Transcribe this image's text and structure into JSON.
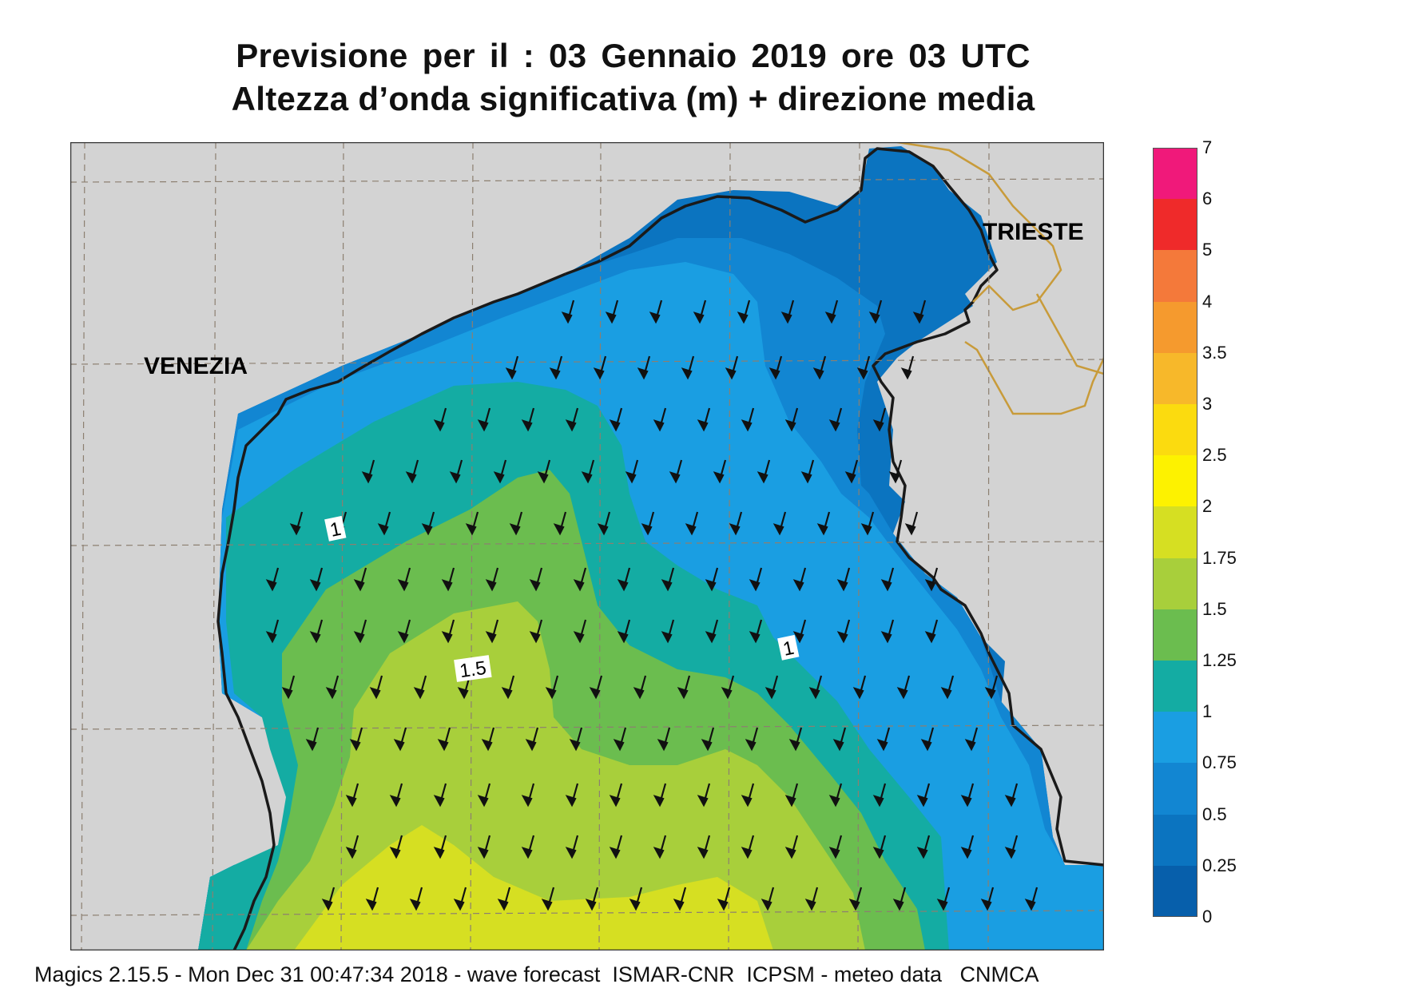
{
  "title_line1": "Previsione per il  :  03  Gennaio  2019   ore 03 UTC",
  "title_line2": "Altezza d’onda significativa (m) + direzione media",
  "footer": "Magics 2.15.5 - Mon Dec 31 00:47:34 2018 - wave forecast  ISMAR-CNR  ICPSM - meteo data   CNMCA",
  "cities": {
    "venezia": "VENEZIA",
    "trieste": "TRIESTE"
  },
  "contour_labels": {
    "c1_west": "1",
    "c1_east": "1",
    "c15": "1.5"
  },
  "legend": {
    "labels": [
      "7",
      "6",
      "5",
      "4",
      "3.5",
      "3",
      "2.5",
      "2",
      "1.75",
      "1.5",
      "1.25",
      "1",
      "0.75",
      "0.5",
      "0.25",
      "0"
    ],
    "colors": [
      "#f0197a",
      "#ef2a2a",
      "#f4793a",
      "#f59a2e",
      "#f7b82a",
      "#fbdb0f",
      "#fdf200",
      "#d6df22",
      "#a8cf3b",
      "#6bbd4f",
      "#14aca3",
      "#1a9ee2",
      "#1286d2",
      "#0b74c0",
      "#075fab"
    ]
  },
  "colors": {
    "land": "#d3d3d3",
    "coast": "#1a1a1a",
    "border": "#c89b3a",
    "grid": "#8c7f70"
  }
}
